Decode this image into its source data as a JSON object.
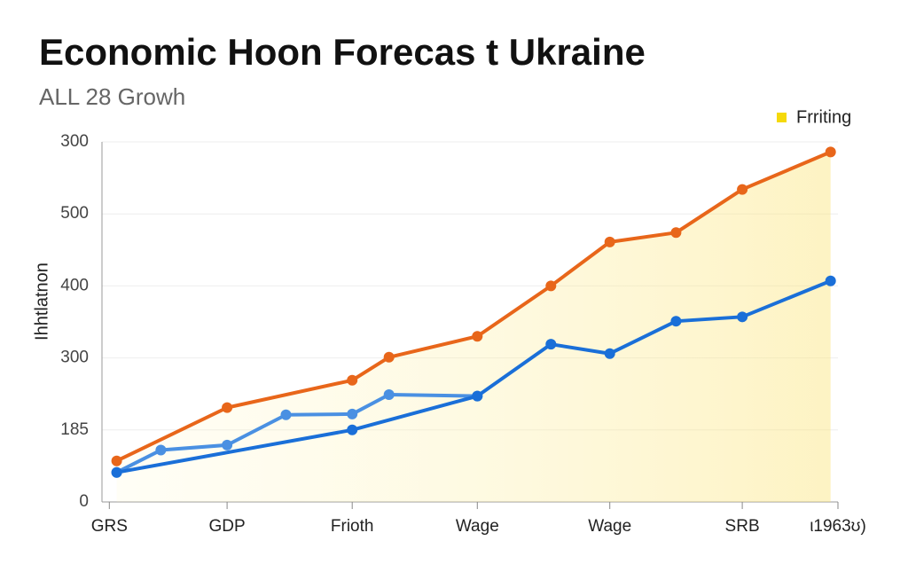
{
  "chart_data": {
    "type": "line",
    "title": "Economic Hoon Forecas t Ukraine",
    "subtitle": "ALL 28 Growh",
    "y_label": "Ihhtlatnon",
    "xlim": [
      0,
      100
    ],
    "xticks": [
      {
        "value": 1,
        "label": "GRS"
      },
      {
        "value": 17,
        "label": "GDP"
      },
      {
        "value": 34,
        "label": "Frioth"
      },
      {
        "value": 51,
        "label": "Wage"
      },
      {
        "value": 69,
        "label": "Wage"
      },
      {
        "value": 87,
        "label": "SRB"
      },
      {
        "value": 100,
        "label": "ι1963ʊ)"
      }
    ],
    "ylim": [
      0,
      500
    ],
    "yticks": [
      0,
      {
        "value": 100,
        "label": "185"
      },
      {
        "value": 200,
        "label": "300"
      },
      {
        "value": 300,
        "label": "400"
      },
      {
        "value": 400,
        "label": "500"
      },
      {
        "value": 500,
        "label": "300"
      }
    ],
    "grid": true,
    "legend_position": "top-right",
    "fill": {
      "name": "Frriting",
      "color": "#f5d90a"
    },
    "series": [
      {
        "color": "#e8661a",
        "x": [
          2,
          17,
          34,
          39,
          51,
          61,
          69,
          78,
          87,
          99
        ],
        "values": [
          57,
          131,
          169,
          201,
          230,
          300,
          361,
          374,
          434,
          486
        ],
        "fill_under": true
      },
      {
        "color": "#4a90e2",
        "x": [
          2,
          8,
          17,
          25,
          34,
          39,
          51
        ],
        "values": [
          41,
          72,
          79,
          121,
          122,
          149,
          147
        ]
      },
      {
        "color": "#1a6fd8",
        "x": [
          2,
          34,
          51,
          61,
          69,
          78,
          87,
          99
        ],
        "values": [
          41,
          100,
          147,
          219,
          206,
          251,
          257,
          307
        ]
      }
    ]
  }
}
